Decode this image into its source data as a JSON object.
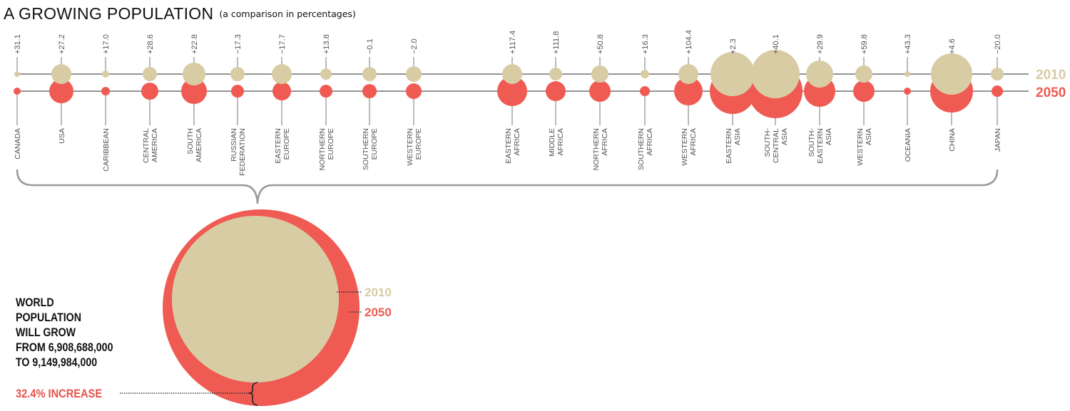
{
  "header": {
    "title": "A GROWING POPULATION",
    "subtitle": "(a comparison in percentages)"
  },
  "colors": {
    "year_2010": "#d8cca4",
    "year_2050": "#ef5b52",
    "line": "#555555",
    "text": "#111111",
    "subtext": "#555555"
  },
  "world": {
    "lines": [
      "WORLD",
      "POPULATION",
      "WILL GROW",
      "FROM 6,908,688,000",
      "TO 9,149,984,000"
    ],
    "increase_label": "32.4% INCREASE"
  },
  "chart_data": {
    "type": "bubble",
    "series": [
      {
        "name": "2010"
      },
      {
        "name": "2050"
      }
    ],
    "regions": [
      {
        "lines": [
          "CANADA"
        ],
        "change": "+31.1"
      },
      {
        "lines": [
          "USA"
        ],
        "change": "+27.2"
      },
      {
        "lines": [
          "CARIBBEAN"
        ],
        "change": "+17.0"
      },
      {
        "lines": [
          "CENTRAL",
          "AMERICA"
        ],
        "change": "+28.6"
      },
      {
        "lines": [
          "SOUTH",
          "AMERICA"
        ],
        "change": "+22.8"
      },
      {
        "lines": [
          "RUSSIAN",
          "FEDERATION"
        ],
        "change": "−17.3"
      },
      {
        "lines": [
          "EASTERN",
          "EUROPE"
        ],
        "change": "−17.7"
      },
      {
        "lines": [
          "NORTHERN",
          "EUROPE"
        ],
        "change": "+13.8"
      },
      {
        "lines": [
          "SOUTHERN",
          "EUROPE"
        ],
        "change": "−0.1"
      },
      {
        "lines": [
          "WESTERN",
          "EUROPE"
        ],
        "change": "−2.0"
      },
      {
        "lines": [
          "EASTERN",
          "AFRICA"
        ],
        "change": "+117.4"
      },
      {
        "lines": [
          "MIDDLE",
          "AFRICA"
        ],
        "change": "+111.8"
      },
      {
        "lines": [
          "NORTHERN",
          "AFRICA"
        ],
        "change": "+50.8"
      },
      {
        "lines": [
          "SOUTHERN",
          "AFRICA"
        ],
        "change": "+16.3"
      },
      {
        "lines": [
          "WESTERN",
          "AFRICA"
        ],
        "change": "+104.4"
      },
      {
        "lines": [
          "EASTERN",
          "ASIA"
        ],
        "change": "+2.3"
      },
      {
        "lines": [
          "SOUTH-",
          "CENTRAL",
          "ASIA"
        ],
        "change": "+40.1"
      },
      {
        "lines": [
          "SOUTH-",
          "EASTERN",
          "ASIA"
        ],
        "change": "+29.9"
      },
      {
        "lines": [
          "WESTERN",
          "ASIA"
        ],
        "change": "+59.8"
      },
      {
        "lines": [
          "OCEANIA"
        ],
        "change": "+43.3"
      },
      {
        "lines": [
          "CHINA"
        ],
        "change": "+4.6"
      },
      {
        "lines": [
          "JAPAN"
        ],
        "change": "−20.0"
      }
    ],
    "world": {
      "population_2010": "6,908,688,000",
      "population_2050": "9,149,984,000",
      "increase": "32.4%"
    }
  }
}
